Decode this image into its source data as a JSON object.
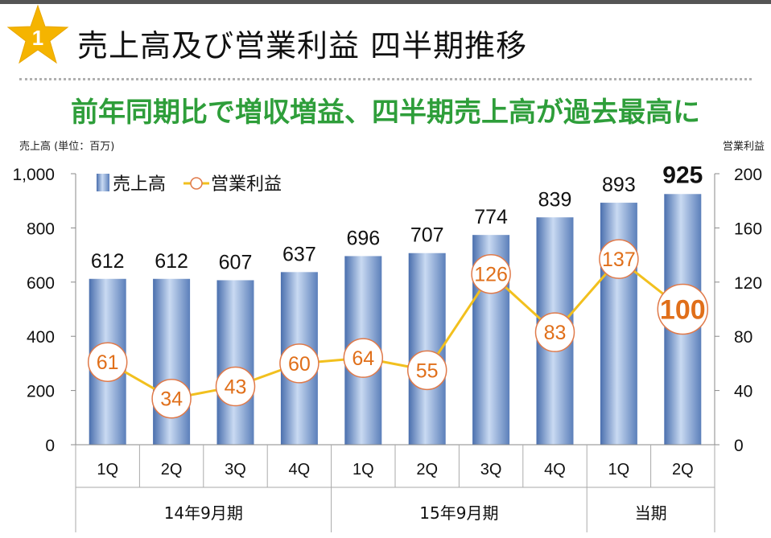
{
  "header": {
    "badge_number": "1",
    "title": "売上高及び営業利益 四半期推移",
    "subtitle": "前年同期比で増収増益、四半期売上高が過去最高に"
  },
  "colors": {
    "bar": "#7d9fcf",
    "line": "#f2c01e",
    "marker_border": "#e07a4a",
    "marker_text": "#e06f1a",
    "title_green": "#2e9e3a",
    "badge": "#f5b400"
  },
  "chart_data": {
    "type": "bar",
    "left_axis_title": "売上高 (単位：百万)",
    "right_axis_title": "営業利益",
    "ylim": [
      0,
      1000
    ],
    "y2lim": [
      0,
      200
    ],
    "y_ticks": [
      "0",
      "200",
      "400",
      "600",
      "800",
      "1,000"
    ],
    "y2_ticks": [
      "0",
      "40",
      "80",
      "120",
      "160",
      "200"
    ],
    "grid": false,
    "legend_position": "top-left",
    "categories": [
      "1Q",
      "2Q",
      "3Q",
      "4Q",
      "1Q",
      "2Q",
      "3Q",
      "4Q",
      "1Q",
      "2Q"
    ],
    "groups": [
      {
        "label": "14年9月期",
        "count": 4
      },
      {
        "label": "15年9月期",
        "count": 4
      },
      {
        "label": "当期",
        "count": 2
      }
    ],
    "series": [
      {
        "name": "売上高",
        "type": "bar",
        "axis": "left",
        "values": [
          612,
          612,
          607,
          637,
          696,
          707,
          774,
          839,
          893,
          925
        ],
        "labels": [
          "612",
          "612",
          "607",
          "637",
          "696",
          "707",
          "774",
          "839",
          "893",
          "925"
        ]
      },
      {
        "name": "営業利益",
        "type": "line",
        "axis": "right",
        "values": [
          61,
          34,
          43,
          60,
          64,
          55,
          126,
          83,
          137,
          100
        ],
        "labels": [
          "61",
          "34",
          "43",
          "60",
          "64",
          "55",
          "126",
          "83",
          "137",
          "100"
        ]
      }
    ]
  }
}
